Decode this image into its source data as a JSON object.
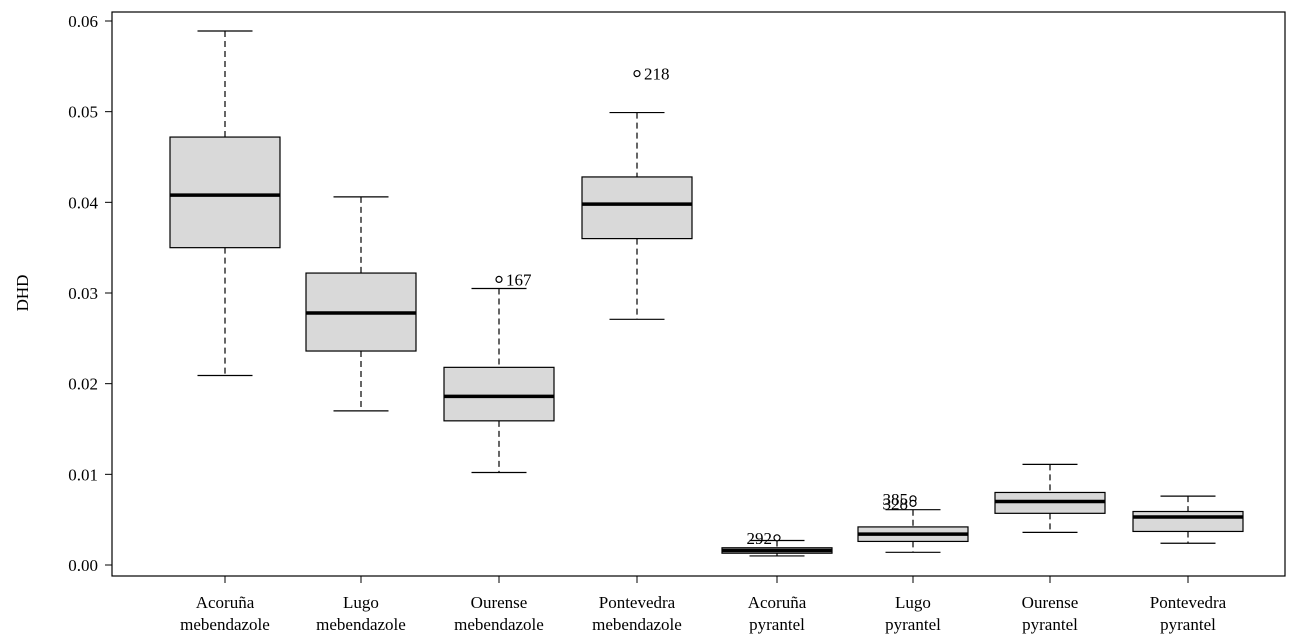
{
  "chart_data": {
    "type": "boxplot",
    "ylabel": "DHD",
    "xlabel": "",
    "title": "",
    "ylim": [
      0,
      0.06
    ],
    "yticks": [
      "0.00",
      "0.01",
      "0.02",
      "0.03",
      "0.04",
      "0.05",
      "0.06"
    ],
    "categories": [
      {
        "line1": "Acoruña",
        "line2": "mebendazole"
      },
      {
        "line1": "Lugo",
        "line2": "mebendazole"
      },
      {
        "line1": "Ourense",
        "line2": "mebendazole"
      },
      {
        "line1": "Pontevedra",
        "line2": "mebendazole"
      },
      {
        "line1": "Acoruña",
        "line2": "pyrantel"
      },
      {
        "line1": "Lugo",
        "line2": "pyrantel"
      },
      {
        "line1": "Ourense",
        "line2": "pyrantel"
      },
      {
        "line1": "Pontevedra",
        "line2": "pyrantel"
      }
    ],
    "boxes": [
      {
        "whisker_low": 0.0209,
        "q1": 0.035,
        "median": 0.0408,
        "q3": 0.0472,
        "whisker_high": 0.0589,
        "outliers": []
      },
      {
        "whisker_low": 0.017,
        "q1": 0.0236,
        "median": 0.0278,
        "q3": 0.0322,
        "whisker_high": 0.0406,
        "outliers": []
      },
      {
        "whisker_low": 0.0102,
        "q1": 0.0159,
        "median": 0.0186,
        "q3": 0.0218,
        "whisker_high": 0.0305,
        "outliers": [
          {
            "value": 0.0315,
            "label": "167",
            "side": "right"
          }
        ]
      },
      {
        "whisker_low": 0.0271,
        "q1": 0.036,
        "median": 0.0398,
        "q3": 0.0428,
        "whisker_high": 0.0499,
        "outliers": [
          {
            "value": 0.0542,
            "label": "218",
            "side": "right"
          }
        ]
      },
      {
        "whisker_low": 0.001,
        "q1": 0.0013,
        "median": 0.0016,
        "q3": 0.0019,
        "whisker_high": 0.0027,
        "outliers": [
          {
            "value": 0.003,
            "label": "292",
            "side": "left"
          }
        ]
      },
      {
        "whisker_low": 0.0014,
        "q1": 0.0026,
        "median": 0.0034,
        "q3": 0.0042,
        "whisker_high": 0.0061,
        "outliers": [
          {
            "value": 0.0073,
            "label": "385",
            "side": "left"
          },
          {
            "value": 0.0068,
            "label": "328",
            "side": "left"
          }
        ]
      },
      {
        "whisker_low": 0.0036,
        "q1": 0.0057,
        "median": 0.007,
        "q3": 0.008,
        "whisker_high": 0.0111,
        "outliers": []
      },
      {
        "whisker_low": 0.0024,
        "q1": 0.0037,
        "median": 0.0053,
        "q3": 0.0059,
        "whisker_high": 0.0076,
        "outliers": []
      }
    ],
    "colors": {
      "box_fill": "#d9d9d9",
      "stroke": "#000000"
    },
    "grid": false
  }
}
